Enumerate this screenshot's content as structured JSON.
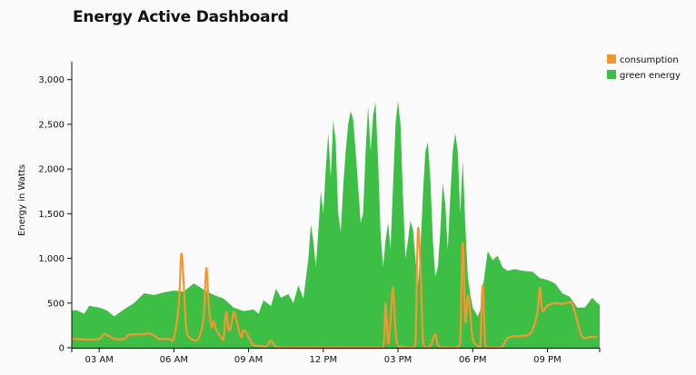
{
  "header": {
    "title": "Energy Active Dashboard"
  },
  "colors": {
    "consumption": "#f7962f",
    "green_energy": "#3dbf46",
    "background": "#fafafa",
    "axis": "#111111"
  },
  "chart_data": {
    "type": "area",
    "title": "Energy Active Dashboard",
    "xlabel": "",
    "ylabel": "Energy in Watts",
    "x_unit": "hours",
    "xlim": [
      1.9,
      23.1
    ],
    "ylim": [
      0,
      3200
    ],
    "y_ticks": [
      0,
      500,
      1000,
      1500,
      2000,
      2500,
      3000
    ],
    "y_tick_labels": [
      "0",
      "500",
      "1,000",
      "1,500",
      "2,000",
      "2,500",
      "3,000"
    ],
    "x_ticks": [
      3,
      6,
      9,
      12,
      15,
      18,
      21
    ],
    "x_tick_labels": [
      "03 AM",
      "06 AM",
      "09 AM",
      "12 PM",
      "03 PM",
      "06 PM",
      "09 PM"
    ],
    "grid": false,
    "legend_position": "top-right",
    "series": [
      {
        "name": "green energy",
        "style": "area",
        "color": "#3dbf46",
        "points": [
          [
            1.9,
            420
          ],
          [
            2.1,
            420
          ],
          [
            2.4,
            380
          ],
          [
            2.6,
            470
          ],
          [
            3.0,
            450
          ],
          [
            3.3,
            420
          ],
          [
            3.6,
            350
          ],
          [
            4.0,
            430
          ],
          [
            4.4,
            500
          ],
          [
            4.8,
            610
          ],
          [
            5.2,
            590
          ],
          [
            5.6,
            620
          ],
          [
            6.0,
            640
          ],
          [
            6.4,
            630
          ],
          [
            6.8,
            720
          ],
          [
            7.2,
            650
          ],
          [
            7.6,
            590
          ],
          [
            8.0,
            550
          ],
          [
            8.4,
            450
          ],
          [
            8.8,
            410
          ],
          [
            9.2,
            430
          ],
          [
            9.4,
            380
          ],
          [
            9.6,
            530
          ],
          [
            9.9,
            470
          ],
          [
            10.1,
            660
          ],
          [
            10.3,
            560
          ],
          [
            10.6,
            600
          ],
          [
            10.8,
            500
          ],
          [
            11.0,
            700
          ],
          [
            11.2,
            550
          ],
          [
            11.4,
            1000
          ],
          [
            11.5,
            1380
          ],
          [
            11.6,
            1200
          ],
          [
            11.7,
            900
          ],
          [
            11.8,
            1300
          ],
          [
            11.9,
            1750
          ],
          [
            12.0,
            1500
          ],
          [
            12.1,
            2000
          ],
          [
            12.2,
            2400
          ],
          [
            12.3,
            1900
          ],
          [
            12.4,
            2550
          ],
          [
            12.5,
            2300
          ],
          [
            12.6,
            1500
          ],
          [
            12.7,
            1300
          ],
          [
            12.8,
            1800
          ],
          [
            12.9,
            2200
          ],
          [
            13.0,
            2500
          ],
          [
            13.1,
            2650
          ],
          [
            13.2,
            2550
          ],
          [
            13.3,
            2200
          ],
          [
            13.4,
            1800
          ],
          [
            13.5,
            1400
          ],
          [
            13.6,
            1500
          ],
          [
            13.7,
            2200
          ],
          [
            13.8,
            2700
          ],
          [
            13.9,
            2200
          ],
          [
            14.0,
            2600
          ],
          [
            14.1,
            2750
          ],
          [
            14.2,
            2100
          ],
          [
            14.3,
            1300
          ],
          [
            14.4,
            900
          ],
          [
            14.5,
            1200
          ],
          [
            14.6,
            1400
          ],
          [
            14.7,
            1100
          ],
          [
            14.8,
            1800
          ],
          [
            14.9,
            2500
          ],
          [
            15.0,
            2760
          ],
          [
            15.1,
            2500
          ],
          [
            15.2,
            1700
          ],
          [
            15.3,
            1000
          ],
          [
            15.4,
            1200
          ],
          [
            15.5,
            1420
          ],
          [
            15.6,
            1320
          ],
          [
            15.7,
            1000
          ],
          [
            15.8,
            700
          ],
          [
            15.9,
            1100
          ],
          [
            16.0,
            1700
          ],
          [
            16.1,
            2200
          ],
          [
            16.2,
            2300
          ],
          [
            16.3,
            1900
          ],
          [
            16.4,
            1200
          ],
          [
            16.5,
            800
          ],
          [
            16.6,
            900
          ],
          [
            16.7,
            1300
          ],
          [
            16.8,
            1850
          ],
          [
            16.9,
            1600
          ],
          [
            17.0,
            1100
          ],
          [
            17.1,
            1700
          ],
          [
            17.2,
            2200
          ],
          [
            17.3,
            2400
          ],
          [
            17.4,
            2200
          ],
          [
            17.5,
            1500
          ],
          [
            17.6,
            2100
          ],
          [
            17.7,
            1400
          ],
          [
            17.8,
            800
          ],
          [
            17.9,
            600
          ],
          [
            18.0,
            450
          ],
          [
            18.1,
            400
          ],
          [
            18.2,
            350
          ],
          [
            18.3,
            420
          ],
          [
            18.4,
            650
          ],
          [
            18.6,
            1080
          ],
          [
            18.8,
            980
          ],
          [
            19.0,
            1030
          ],
          [
            19.2,
            900
          ],
          [
            19.4,
            860
          ],
          [
            19.7,
            880
          ],
          [
            20.0,
            860
          ],
          [
            20.4,
            850
          ],
          [
            20.7,
            780
          ],
          [
            21.0,
            760
          ],
          [
            21.3,
            720
          ],
          [
            21.6,
            610
          ],
          [
            21.9,
            570
          ],
          [
            22.2,
            450
          ],
          [
            22.5,
            450
          ],
          [
            22.7,
            520
          ],
          [
            22.8,
            560
          ],
          [
            23.0,
            500
          ],
          [
            23.1,
            480
          ]
        ]
      },
      {
        "name": "consumption",
        "style": "line",
        "color": "#f7962f",
        "points": [
          [
            1.9,
            100
          ],
          [
            2.3,
            95
          ],
          [
            2.6,
            90
          ],
          [
            3.0,
            100
          ],
          [
            3.2,
            150
          ],
          [
            3.4,
            130
          ],
          [
            3.6,
            100
          ],
          [
            4.0,
            100
          ],
          [
            4.2,
            145
          ],
          [
            4.6,
            150
          ],
          [
            5.0,
            160
          ],
          [
            5.2,
            140
          ],
          [
            5.4,
            100
          ],
          [
            5.8,
            100
          ],
          [
            6.0,
            110
          ],
          [
            6.2,
            500
          ],
          [
            6.3,
            1050
          ],
          [
            6.4,
            700
          ],
          [
            6.5,
            210
          ],
          [
            6.7,
            100
          ],
          [
            7.0,
            110
          ],
          [
            7.2,
            360
          ],
          [
            7.3,
            890
          ],
          [
            7.4,
            500
          ],
          [
            7.5,
            240
          ],
          [
            7.6,
            300
          ],
          [
            7.7,
            200
          ],
          [
            7.9,
            120
          ],
          [
            8.0,
            110
          ],
          [
            8.1,
            400
          ],
          [
            8.2,
            200
          ],
          [
            8.3,
            250
          ],
          [
            8.4,
            400
          ],
          [
            8.5,
            320
          ],
          [
            8.7,
            120
          ],
          [
            8.8,
            200
          ],
          [
            9.0,
            120
          ],
          [
            9.2,
            30
          ],
          [
            9.5,
            20
          ],
          [
            9.7,
            10
          ],
          [
            9.9,
            80
          ],
          [
            10.1,
            10
          ],
          [
            10.5,
            0
          ],
          [
            11.0,
            0
          ],
          [
            12.0,
            0
          ],
          [
            13.0,
            0
          ],
          [
            14.0,
            0
          ],
          [
            14.4,
            0
          ],
          [
            14.5,
            500
          ],
          [
            14.6,
            50
          ],
          [
            14.7,
            300
          ],
          [
            14.8,
            670
          ],
          [
            14.9,
            200
          ],
          [
            15.0,
            20
          ],
          [
            15.2,
            10
          ],
          [
            15.4,
            0
          ],
          [
            15.6,
            0
          ],
          [
            15.7,
            30
          ],
          [
            15.8,
            1300
          ],
          [
            15.9,
            900
          ],
          [
            16.0,
            100
          ],
          [
            16.1,
            0
          ],
          [
            16.3,
            20
          ],
          [
            16.5,
            150
          ],
          [
            16.6,
            30
          ],
          [
            16.8,
            0
          ],
          [
            17.0,
            0
          ],
          [
            17.2,
            0
          ],
          [
            17.4,
            10
          ],
          [
            17.5,
            60
          ],
          [
            17.6,
            1170
          ],
          [
            17.7,
            300
          ],
          [
            17.8,
            580
          ],
          [
            17.9,
            400
          ],
          [
            18.0,
            100
          ],
          [
            18.2,
            20
          ],
          [
            18.3,
            10
          ],
          [
            18.4,
            700
          ],
          [
            18.5,
            50
          ],
          [
            18.6,
            0
          ],
          [
            19.0,
            0
          ],
          [
            19.2,
            10
          ],
          [
            19.4,
            110
          ],
          [
            19.8,
            130
          ],
          [
            20.2,
            140
          ],
          [
            20.4,
            200
          ],
          [
            20.6,
            400
          ],
          [
            20.7,
            670
          ],
          [
            20.8,
            420
          ],
          [
            21.0,
            470
          ],
          [
            21.3,
            500
          ],
          [
            21.6,
            490
          ],
          [
            21.9,
            510
          ],
          [
            22.0,
            490
          ],
          [
            22.2,
            300
          ],
          [
            22.4,
            120
          ],
          [
            22.7,
            120
          ],
          [
            23.0,
            120
          ]
        ]
      }
    ],
    "legend": [
      {
        "name": "consumption",
        "color": "#f7962f"
      },
      {
        "name": "green energy",
        "color": "#3dbf46"
      }
    ]
  }
}
